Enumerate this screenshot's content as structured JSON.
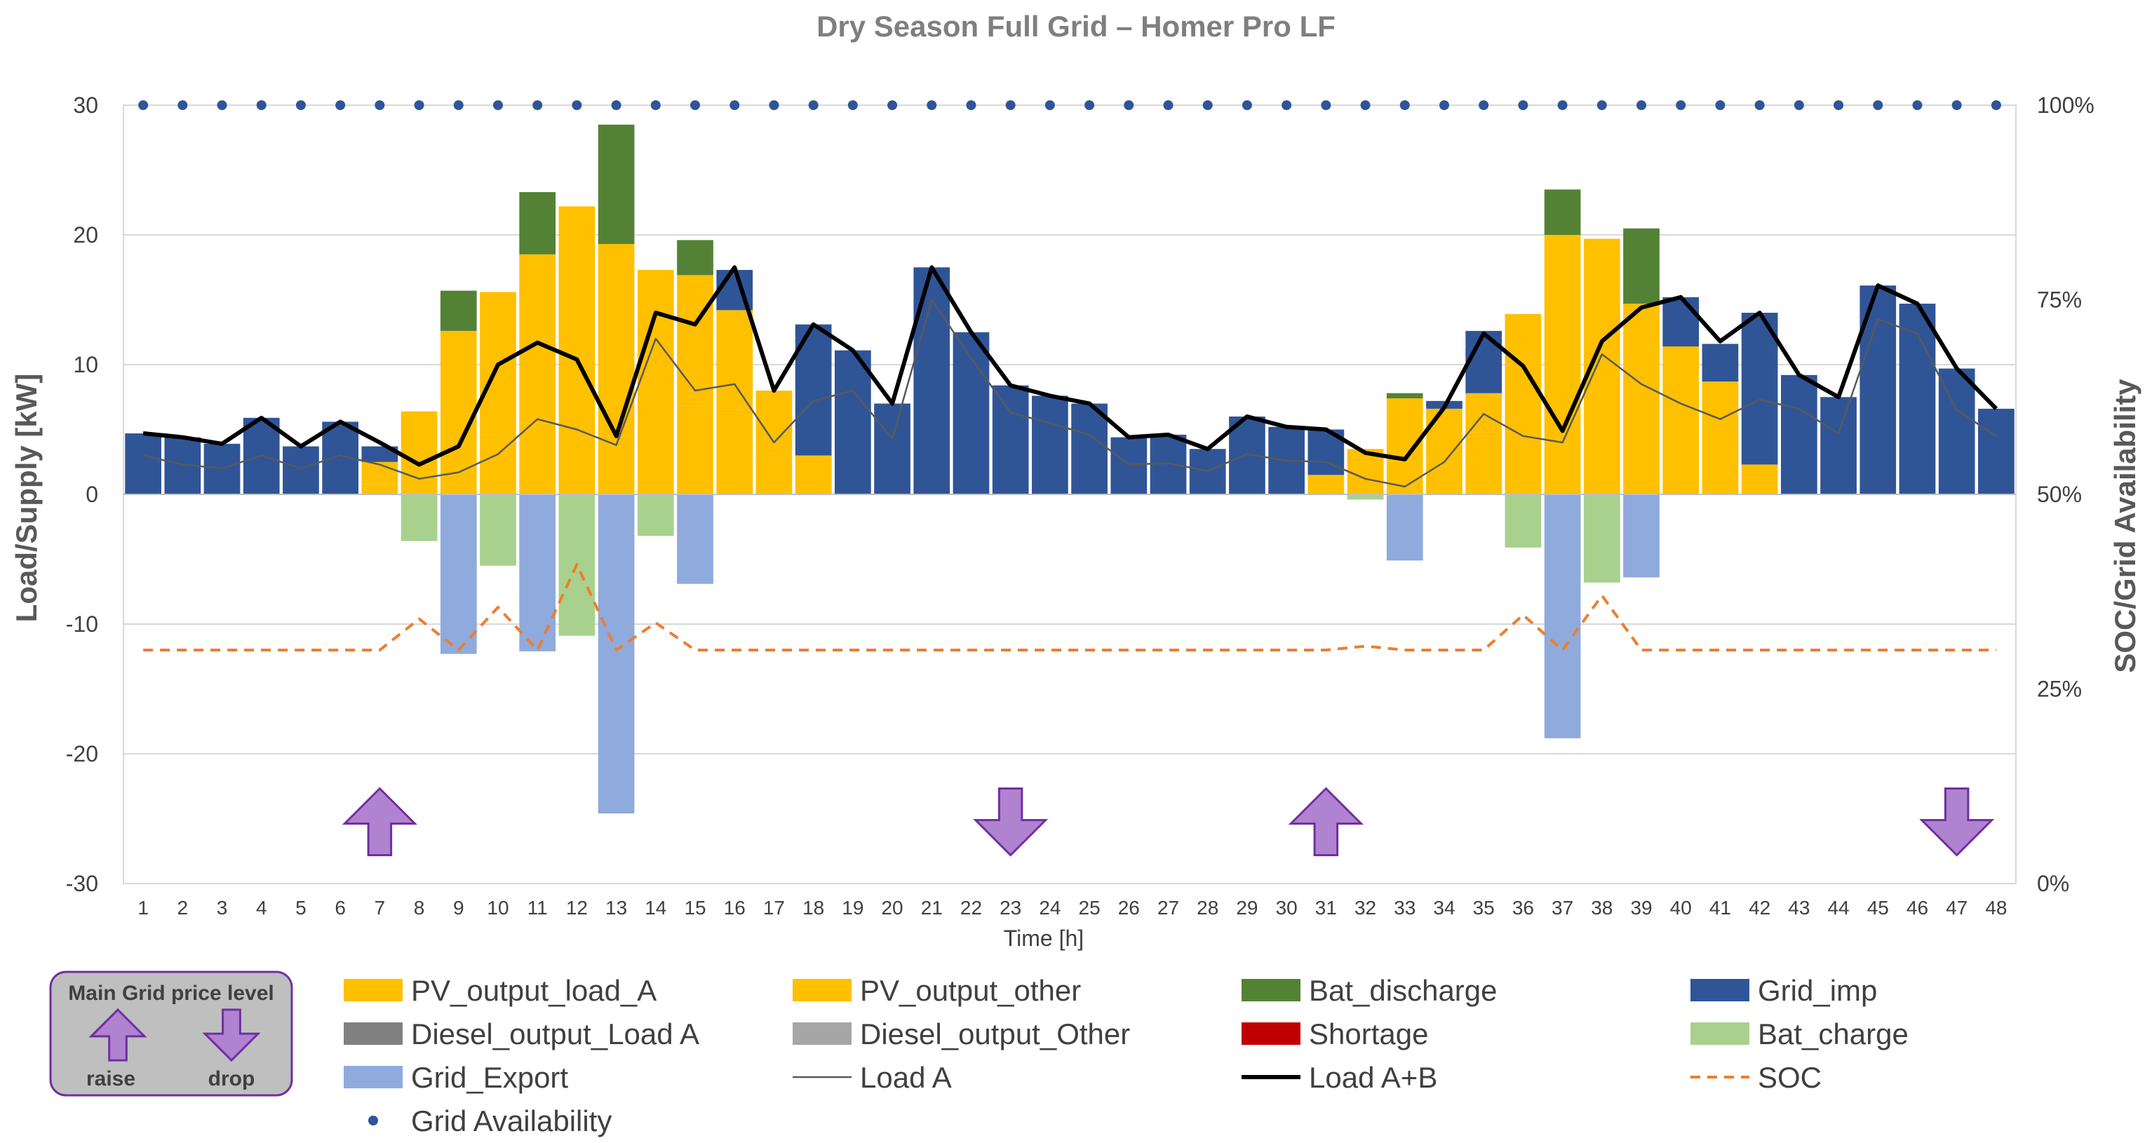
{
  "chart_data": {
    "type": "bar",
    "title": "Dry Season Full Grid – Homer Pro LF",
    "xlabel": "Time [h]",
    "ylabel": "Load/Supply [kW]",
    "y2label": "SOC/Grid Availability",
    "ylim": [
      -30,
      30
    ],
    "yticks": [
      30,
      20,
      10,
      0,
      -10,
      -20,
      -30
    ],
    "y2lim": [
      0,
      100
    ],
    "y2ticks": [
      "100%",
      "75%",
      "50%",
      "25%",
      "0%"
    ],
    "categories": [
      "1",
      "2",
      "3",
      "4",
      "5",
      "6",
      "7",
      "8",
      "9",
      "10",
      "11",
      "12",
      "13",
      "14",
      "15",
      "16",
      "17",
      "18",
      "19",
      "20",
      "21",
      "22",
      "23",
      "24",
      "25",
      "26",
      "27",
      "28",
      "29",
      "30",
      "31",
      "32",
      "33",
      "34",
      "35",
      "36",
      "37",
      "38",
      "39",
      "40",
      "41",
      "42",
      "43",
      "44",
      "45",
      "46",
      "47",
      "48"
    ],
    "series": [
      {
        "name": "PV_output_load_A",
        "color": "#ffc000",
        "kind": "bar",
        "values": [
          0,
          0,
          0,
          0,
          0,
          0,
          0.8,
          2.3,
          3.7,
          4.6,
          5.5,
          5,
          4.5,
          7.5,
          6.8,
          6.5,
          3.2,
          3,
          0,
          0,
          0,
          0,
          0,
          0,
          0,
          0,
          0,
          0,
          0,
          0,
          1.5,
          2.5,
          2.5,
          2.5,
          4.8,
          4,
          3,
          9.5,
          9,
          8,
          6,
          2.3,
          0,
          0,
          0,
          0,
          0,
          0
        ]
      },
      {
        "name": "PV_output_other",
        "color": "#ffc000",
        "kind": "bar",
        "values": [
          0,
          0,
          0,
          0,
          0,
          0,
          1.7,
          4.1,
          8.9,
          11,
          13,
          17.2,
          14.8,
          9.8,
          10.1,
          7.7,
          4.8,
          0,
          0,
          0,
          0,
          0,
          0,
          0,
          0,
          0,
          0,
          0,
          0,
          0,
          0,
          1,
          4.9,
          4.1,
          3,
          9.9,
          17,
          10.2,
          5.7,
          3.4,
          2.7,
          0,
          0,
          0,
          0,
          0,
          0,
          0
        ]
      },
      {
        "name": "Bat_discharge",
        "color": "#548235",
        "kind": "bar",
        "values": [
          0,
          0,
          0,
          0,
          0,
          0,
          0,
          0,
          3.1,
          0,
          4.8,
          0,
          9.2,
          0,
          2.7,
          0,
          0,
          0,
          0,
          0,
          0,
          0,
          0,
          0,
          0,
          0,
          0,
          0,
          0,
          0,
          0,
          0,
          0.4,
          0,
          0,
          0,
          3.5,
          0,
          5.8,
          0,
          0,
          0,
          0,
          0,
          0,
          0,
          0,
          0
        ]
      },
      {
        "name": "Grid_imp",
        "color": "#2f5597",
        "kind": "bar",
        "values": [
          4.7,
          4.4,
          3.9,
          5.9,
          3.7,
          5.6,
          1.2,
          0,
          0,
          0,
          0,
          0,
          0,
          0,
          0,
          3.1,
          0,
          10.1,
          11.1,
          7,
          17.5,
          12.5,
          8.4,
          7.6,
          7,
          4.4,
          4.6,
          3.5,
          6,
          5.2,
          3.5,
          0,
          0,
          0.6,
          4.8,
          0,
          0,
          0,
          0,
          3.8,
          2.9,
          11.7,
          9.2,
          7.5,
          16.1,
          14.7,
          9.7,
          6.6
        ]
      },
      {
        "name": "Diesel_output_Load A",
        "color": "#808080",
        "kind": "bar",
        "values": [
          0,
          0,
          0,
          0,
          0,
          0,
          0,
          0,
          0,
          0,
          0,
          0,
          0,
          0,
          0,
          0,
          0,
          0,
          0,
          0,
          0,
          0,
          0,
          0,
          0,
          0,
          0,
          0,
          0,
          0,
          0,
          0,
          0,
          0,
          0,
          0,
          0,
          0,
          0,
          0,
          0,
          0,
          0,
          0,
          0,
          0,
          0,
          0
        ]
      },
      {
        "name": "Diesel_output_Other",
        "color": "#a6a6a6",
        "kind": "bar",
        "values": [
          0,
          0,
          0,
          0,
          0,
          0,
          0,
          0,
          0,
          0,
          0,
          0,
          0,
          0,
          0,
          0,
          0,
          0,
          0,
          0,
          0,
          0,
          0,
          0,
          0,
          0,
          0,
          0,
          0,
          0,
          0,
          0,
          0,
          0,
          0,
          0,
          0,
          0,
          0,
          0,
          0,
          0,
          0,
          0,
          0,
          0,
          0,
          0
        ]
      },
      {
        "name": "Shortage",
        "color": "#c00000",
        "kind": "bar",
        "values": [
          0,
          0,
          0,
          0,
          0,
          0,
          0,
          0,
          0,
          0,
          0,
          0,
          0,
          0,
          0,
          0,
          0,
          0,
          0,
          0,
          0,
          0,
          0,
          0,
          0,
          0,
          0,
          0,
          0,
          0,
          0,
          0,
          0,
          0,
          0,
          0,
          0,
          0,
          0,
          0,
          0,
          0,
          0,
          0,
          0,
          0,
          0,
          0
        ]
      },
      {
        "name": "Bat_charge",
        "color": "#a9d18e",
        "kind": "bar",
        "values": [
          0,
          0,
          0,
          0,
          0,
          0,
          0,
          -3.6,
          0,
          -5.5,
          0,
          -10.9,
          0,
          -3.2,
          0,
          0,
          0,
          0,
          0,
          0,
          0,
          0,
          0,
          0,
          0,
          0,
          0,
          0,
          0,
          0,
          0,
          -0.4,
          0,
          0,
          0,
          -4.1,
          0,
          -6.8,
          0,
          0,
          0,
          0,
          0,
          0,
          0,
          0,
          0,
          0
        ]
      },
      {
        "name": "Grid_Export",
        "color": "#8faadc",
        "kind": "bar",
        "values": [
          0,
          0,
          0,
          0,
          0,
          0,
          0,
          0,
          -12.3,
          0,
          -12.1,
          0,
          -24.6,
          0,
          -6.9,
          0,
          0,
          0,
          0,
          0,
          0,
          0,
          0,
          0,
          0,
          0,
          0,
          0,
          0,
          0,
          0,
          0,
          -5.1,
          0,
          0,
          0,
          -18.8,
          0,
          -6.4,
          0,
          0,
          0,
          0,
          0,
          0,
          0,
          0,
          0
        ]
      },
      {
        "name": "Load A",
        "color": "#595959",
        "kind": "line",
        "values": [
          3,
          2.3,
          2,
          3,
          2,
          3,
          2.3,
          1.2,
          1.7,
          3.1,
          5.8,
          5,
          3.8,
          12,
          8,
          8.5,
          4,
          7.2,
          8,
          4.3,
          15,
          10.5,
          6.3,
          5.5,
          4.6,
          2.3,
          2.4,
          1.8,
          3.1,
          2.6,
          2.5,
          1.2,
          0.6,
          2.5,
          6.2,
          4.5,
          4,
          10.8,
          8.5,
          7,
          5.8,
          7.3,
          6.6,
          4.7,
          13.5,
          12.4,
          6.5,
          4.5
        ]
      },
      {
        "name": "Load A+B",
        "color": "#000000",
        "kind": "line",
        "values": [
          4.7,
          4.4,
          3.9,
          5.9,
          3.7,
          5.6,
          4,
          2.3,
          3.7,
          10,
          11.7,
          10.4,
          4.5,
          14,
          13.1,
          17.5,
          8,
          13.1,
          11.1,
          7,
          17.5,
          12.5,
          8.4,
          7.6,
          7,
          4.4,
          4.6,
          3.5,
          6,
          5.2,
          5,
          3.2,
          2.7,
          6.7,
          12.4,
          9.9,
          4.9,
          11.8,
          14.4,
          15.2,
          11.8,
          14,
          9.2,
          7.5,
          16.1,
          14.7,
          9.7,
          6.6
        ]
      },
      {
        "name": "SOC",
        "color": "#ed7d31",
        "kind": "dashed-line",
        "axis": "secondary",
        "values": [
          30,
          30,
          30,
          30,
          30,
          30,
          30,
          34,
          30,
          35.5,
          30,
          41,
          30,
          33.5,
          30,
          30,
          30,
          30,
          30,
          30,
          30,
          30,
          30,
          30,
          30,
          30,
          30,
          30,
          30,
          30,
          30,
          30.5,
          30,
          30,
          30,
          34.5,
          30,
          37,
          30,
          30,
          30,
          30,
          30,
          30,
          30,
          30,
          30,
          30
        ]
      },
      {
        "name": "Grid Availability",
        "color": "#2f5597",
        "kind": "marker",
        "axis": "secondary",
        "values": [
          100,
          100,
          100,
          100,
          100,
          100,
          100,
          100,
          100,
          100,
          100,
          100,
          100,
          100,
          100,
          100,
          100,
          100,
          100,
          100,
          100,
          100,
          100,
          100,
          100,
          100,
          100,
          100,
          100,
          100,
          100,
          100,
          100,
          100,
          100,
          100,
          100,
          100,
          100,
          100,
          100,
          100,
          100,
          100,
          100,
          100,
          100,
          100
        ]
      }
    ],
    "price_arrows": [
      {
        "hour": 7,
        "direction": "up"
      },
      {
        "hour": 23,
        "direction": "down"
      },
      {
        "hour": 31,
        "direction": "up"
      },
      {
        "hour": 47,
        "direction": "down"
      }
    ],
    "legend": [
      [
        "PV_output_load_A",
        "PV_output_other",
        "Bat_discharge",
        "Grid_imp"
      ],
      [
        "Diesel_output_Load A",
        "Diesel_output_Other",
        "Shortage",
        "Bat_charge"
      ],
      [
        "Grid_Export",
        "Load A",
        "Load A+B",
        "SOC"
      ],
      [
        "Grid Availability"
      ]
    ],
    "inset": {
      "title": "Main Grid price level",
      "raise_label": "raise",
      "drop_label": "drop"
    }
  }
}
